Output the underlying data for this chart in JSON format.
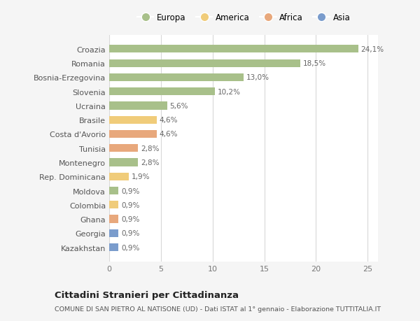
{
  "countries": [
    "Croazia",
    "Romania",
    "Bosnia-Erzegovina",
    "Slovenia",
    "Ucraina",
    "Brasile",
    "Costa d'Avorio",
    "Tunisia",
    "Montenegro",
    "Rep. Dominicana",
    "Moldova",
    "Colombia",
    "Ghana",
    "Georgia",
    "Kazakhstan"
  ],
  "values": [
    24.1,
    18.5,
    13.0,
    10.2,
    5.6,
    4.6,
    4.6,
    2.8,
    2.8,
    1.9,
    0.9,
    0.9,
    0.9,
    0.9,
    0.9
  ],
  "labels": [
    "24,1%",
    "18,5%",
    "13,0%",
    "10,2%",
    "5,6%",
    "4,6%",
    "4,6%",
    "2,8%",
    "2,8%",
    "1,9%",
    "0,9%",
    "0,9%",
    "0,9%",
    "0,9%",
    "0,9%"
  ],
  "categories": [
    "Europa",
    "Europa",
    "Europa",
    "Europa",
    "Europa",
    "America",
    "Africa",
    "Africa",
    "Europa",
    "America",
    "Europa",
    "America",
    "Africa",
    "Asia",
    "Asia"
  ],
  "colors": {
    "Europa": "#a8c08a",
    "America": "#f0cc7a",
    "Africa": "#e8a87c",
    "Asia": "#7a9ccc"
  },
  "legend_order": [
    "Europa",
    "America",
    "Africa",
    "Asia"
  ],
  "title": "Cittadini Stranieri per Cittadinanza",
  "subtitle": "COMUNE DI SAN PIETRO AL NATISONE (UD) - Dati ISTAT al 1° gennaio - Elaborazione TUTTITALIA.IT",
  "xlim": [
    0,
    26
  ],
  "xticks": [
    0,
    5,
    10,
    15,
    20,
    25
  ],
  "background_color": "#f5f5f5",
  "bar_background": "#ffffff",
  "grid_color": "#d8d8d8"
}
